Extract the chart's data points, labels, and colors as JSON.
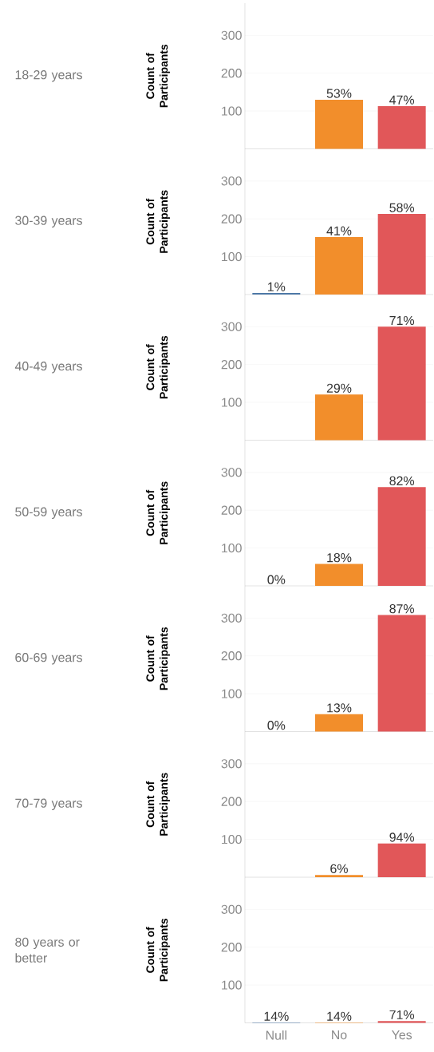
{
  "chart_data": [
    {
      "type": "bar",
      "ylabel": "Count of Participants",
      "categories": [
        "Null",
        "No",
        "Yes"
      ],
      "values": [
        null,
        130,
        113
      ],
      "colors": [
        "#4e79a7",
        "#f28e2b",
        "#e15759"
      ],
      "ylim": [
        0,
        385
      ],
      "yticks": [
        100,
        200,
        300
      ],
      "grid": "y",
      "tick_labels": "y",
      "annotations": [
        "18-29 years",
        {
          "text": "53%",
          "x": "No",
          "y": 130
        },
        {
          "text": "47%",
          "x": "Yes",
          "y": 113
        }
      ]
    },
    {
      "type": "bar",
      "ylabel": "Count of Participants",
      "categories": [
        "Null",
        "No",
        "Yes"
      ],
      "values": [
        4,
        152,
        213
      ],
      "colors": [
        "#4e79a7",
        "#f28e2b",
        "#e15759"
      ],
      "ylim": [
        0,
        385
      ],
      "yticks": [
        100,
        200,
        300
      ],
      "grid": "y",
      "tick_labels": "y",
      "annotations": [
        "30-39 years",
        {
          "text": "1%",
          "x": "Null",
          "y": 4
        },
        {
          "text": "41%",
          "x": "No",
          "y": 152
        },
        {
          "text": "58%",
          "x": "Yes",
          "y": 213
        }
      ]
    },
    {
      "type": "bar",
      "ylabel": "Count of Participants",
      "categories": [
        "Null",
        "No",
        "Yes"
      ],
      "values": [
        null,
        121,
        300
      ],
      "colors": [
        "#4e79a7",
        "#f28e2b",
        "#e15759"
      ],
      "ylim": [
        0,
        385
      ],
      "yticks": [
        100,
        200,
        300
      ],
      "grid": "y",
      "tick_labels": "y",
      "annotations": [
        "40-49 years",
        {
          "text": "29%",
          "x": "No",
          "y": 121
        },
        {
          "text": "71%",
          "x": "Yes",
          "y": 300
        }
      ]
    },
    {
      "type": "bar",
      "ylabel": "Count of Participants",
      "categories": [
        "Null",
        "No",
        "Yes"
      ],
      "values": [
        0,
        58,
        261
      ],
      "colors": [
        "#4e79a7",
        "#f28e2b",
        "#e15759"
      ],
      "ylim": [
        0,
        385
      ],
      "yticks": [
        100,
        200,
        300
      ],
      "grid": "y",
      "tick_labels": "y",
      "annotations": [
        "50-59 years",
        {
          "text": "0%",
          "x": "Null",
          "y": 0
        },
        {
          "text": "18%",
          "x": "No",
          "y": 58
        },
        {
          "text": "82%",
          "x": "Yes",
          "y": 261
        }
      ]
    },
    {
      "type": "bar",
      "ylabel": "Count of Participants",
      "categories": [
        "Null",
        "No",
        "Yes"
      ],
      "values": [
        0,
        46,
        308
      ],
      "colors": [
        "#4e79a7",
        "#f28e2b",
        "#e15759"
      ],
      "ylim": [
        0,
        385
      ],
      "yticks": [
        100,
        200,
        300
      ],
      "grid": "y",
      "tick_labels": "y",
      "annotations": [
        "60-69 years",
        {
          "text": "0%",
          "x": "Null",
          "y": 0
        },
        {
          "text": "13%",
          "x": "No",
          "y": 46
        },
        {
          "text": "87%",
          "x": "Yes",
          "y": 308
        }
      ]
    },
    {
      "type": "bar",
      "ylabel": "Count of Participants",
      "categories": [
        "Null",
        "No",
        "Yes"
      ],
      "values": [
        null,
        6,
        89
      ],
      "colors": [
        "#4e79a7",
        "#f28e2b",
        "#e15759"
      ],
      "ylim": [
        0,
        385
      ],
      "yticks": [
        100,
        200,
        300
      ],
      "grid": "y",
      "tick_labels": "y",
      "annotations": [
        "70-79 years",
        {
          "text": "6%",
          "x": "No",
          "y": 6
        },
        {
          "text": "94%",
          "x": "Yes",
          "y": 89
        }
      ]
    },
    {
      "type": "bar",
      "ylabel": "Count of Participants",
      "categories": [
        "Null",
        "No",
        "Yes"
      ],
      "values": [
        1,
        1,
        5
      ],
      "colors": [
        "#4e79a7",
        "#f28e2b",
        "#e15759"
      ],
      "ylim": [
        0,
        385
      ],
      "yticks": [
        100,
        200,
        300
      ],
      "grid": "y",
      "annotations": [
        "80 years or better",
        {
          "text": "14%",
          "x": "Null",
          "y": 1
        },
        {
          "text": "14%",
          "x": "No",
          "y": 1
        },
        {
          "text": "71%",
          "x": "Yes",
          "y": 5
        }
      ]
    }
  ]
}
